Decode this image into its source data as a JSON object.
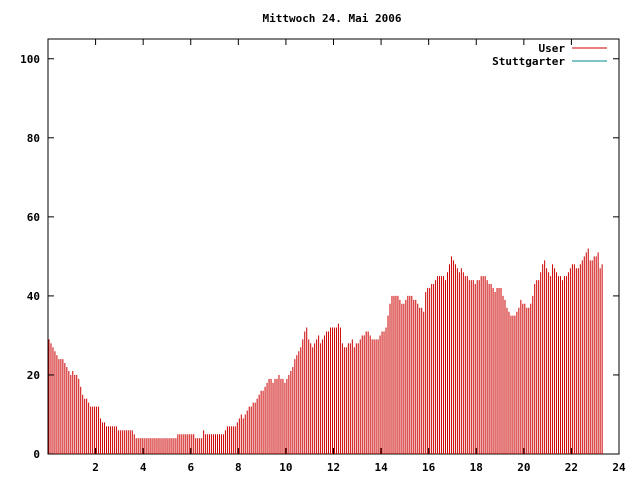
{
  "chart_data": {
    "type": "bar",
    "title": "Mittwoch 24. Mai 2006",
    "xlim": [
      0,
      24
    ],
    "ylim": [
      0,
      105
    ],
    "x_ticks": [
      2,
      4,
      6,
      8,
      10,
      12,
      14,
      16,
      18,
      20,
      22,
      24
    ],
    "y_ticks": [
      0,
      20,
      40,
      60,
      80,
      100
    ],
    "grid": false,
    "legend_position": "top-right",
    "bucket_minutes": 5,
    "series": [
      {
        "name": "User",
        "color": "#cc0000",
        "x_start": 0,
        "x_step": 0.08333,
        "values": [
          29,
          28,
          27,
          26,
          25,
          24,
          24,
          24,
          23,
          22,
          21,
          20,
          21,
          20,
          20,
          19,
          17,
          15,
          14,
          14,
          13,
          12,
          12,
          12,
          12,
          12,
          9,
          8,
          8,
          7,
          7,
          7,
          7,
          7,
          7,
          6,
          6,
          6,
          6,
          6,
          6,
          6,
          6,
          5,
          4,
          4,
          4,
          4,
          4,
          4,
          4,
          4,
          4,
          4,
          4,
          4,
          4,
          4,
          4,
          4,
          4,
          4,
          4,
          4,
          4,
          5,
          5,
          5,
          5,
          5,
          5,
          5,
          5,
          5,
          4,
          4,
          4,
          4,
          6,
          5,
          5,
          5,
          5,
          5,
          5,
          5,
          5,
          5,
          5,
          6,
          7,
          7,
          7,
          7,
          7,
          8,
          9,
          10,
          9,
          10,
          11,
          12,
          12,
          13,
          13,
          14,
          15,
          16,
          16,
          17,
          18,
          19,
          19,
          18,
          19,
          19,
          20,
          19,
          19,
          18,
          19,
          20,
          21,
          22,
          24,
          25,
          26,
          27,
          29,
          31,
          32,
          29,
          28,
          27,
          28,
          29,
          30,
          28,
          29,
          30,
          31,
          31,
          32,
          32,
          32,
          32,
          33,
          32,
          28,
          27,
          27,
          28,
          28,
          29,
          27,
          28,
          28,
          29,
          30,
          30,
          31,
          31,
          30,
          29,
          29,
          29,
          29,
          30,
          31,
          31,
          32,
          35,
          38,
          40,
          40,
          40,
          40,
          39,
          38,
          38,
          39,
          40,
          40,
          40,
          39,
          39,
          38,
          37,
          37,
          36,
          41,
          42,
          42,
          43,
          43,
          44,
          45,
          45,
          45,
          45,
          44,
          46,
          48,
          50,
          49,
          48,
          47,
          46,
          47,
          46,
          45,
          45,
          44,
          44,
          44,
          43,
          44,
          44,
          45,
          45,
          45,
          44,
          43,
          43,
          42,
          41,
          42,
          42,
          42,
          40,
          39,
          37,
          36,
          35,
          35,
          35,
          36,
          37,
          39,
          38,
          38,
          37,
          37,
          38,
          40,
          43,
          44,
          44,
          46,
          48,
          49,
          47,
          46,
          45,
          48,
          47,
          46,
          45,
          45,
          44,
          45,
          45,
          46,
          47,
          48,
          48,
          47,
          47,
          48,
          49,
          50,
          51,
          52,
          49,
          49,
          50,
          50,
          51,
          47,
          48
        ]
      },
      {
        "name": "Stuttgarter",
        "color": "#008b8b",
        "x_start": 0,
        "x_step": 0.08333,
        "values": []
      }
    ]
  }
}
